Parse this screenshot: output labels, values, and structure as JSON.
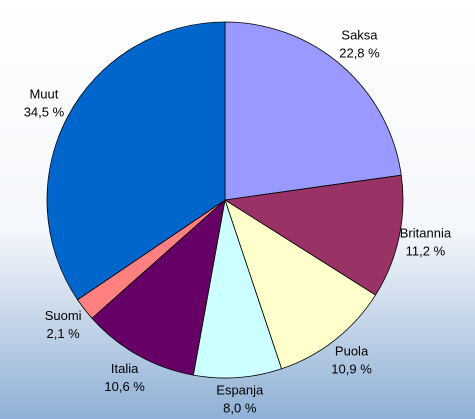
{
  "chart_data": {
    "type": "pie",
    "categories": [
      "Saksa",
      "Britannia",
      "Puola",
      "Espanja",
      "Italia",
      "Suomi",
      "Muut"
    ],
    "values": [
      22.8,
      11.2,
      10.9,
      8.0,
      10.6,
      2.1,
      34.5
    ],
    "value_labels": [
      "22,8 %",
      "11,2 %",
      "10,9 %",
      "8,0 %",
      "10,6 %",
      "2,1 %",
      "34,5 %"
    ],
    "colors": [
      "#9999ff",
      "#993366",
      "#ffffcc",
      "#ccffff",
      "#660066",
      "#ff8080",
      "#0066cc"
    ]
  }
}
